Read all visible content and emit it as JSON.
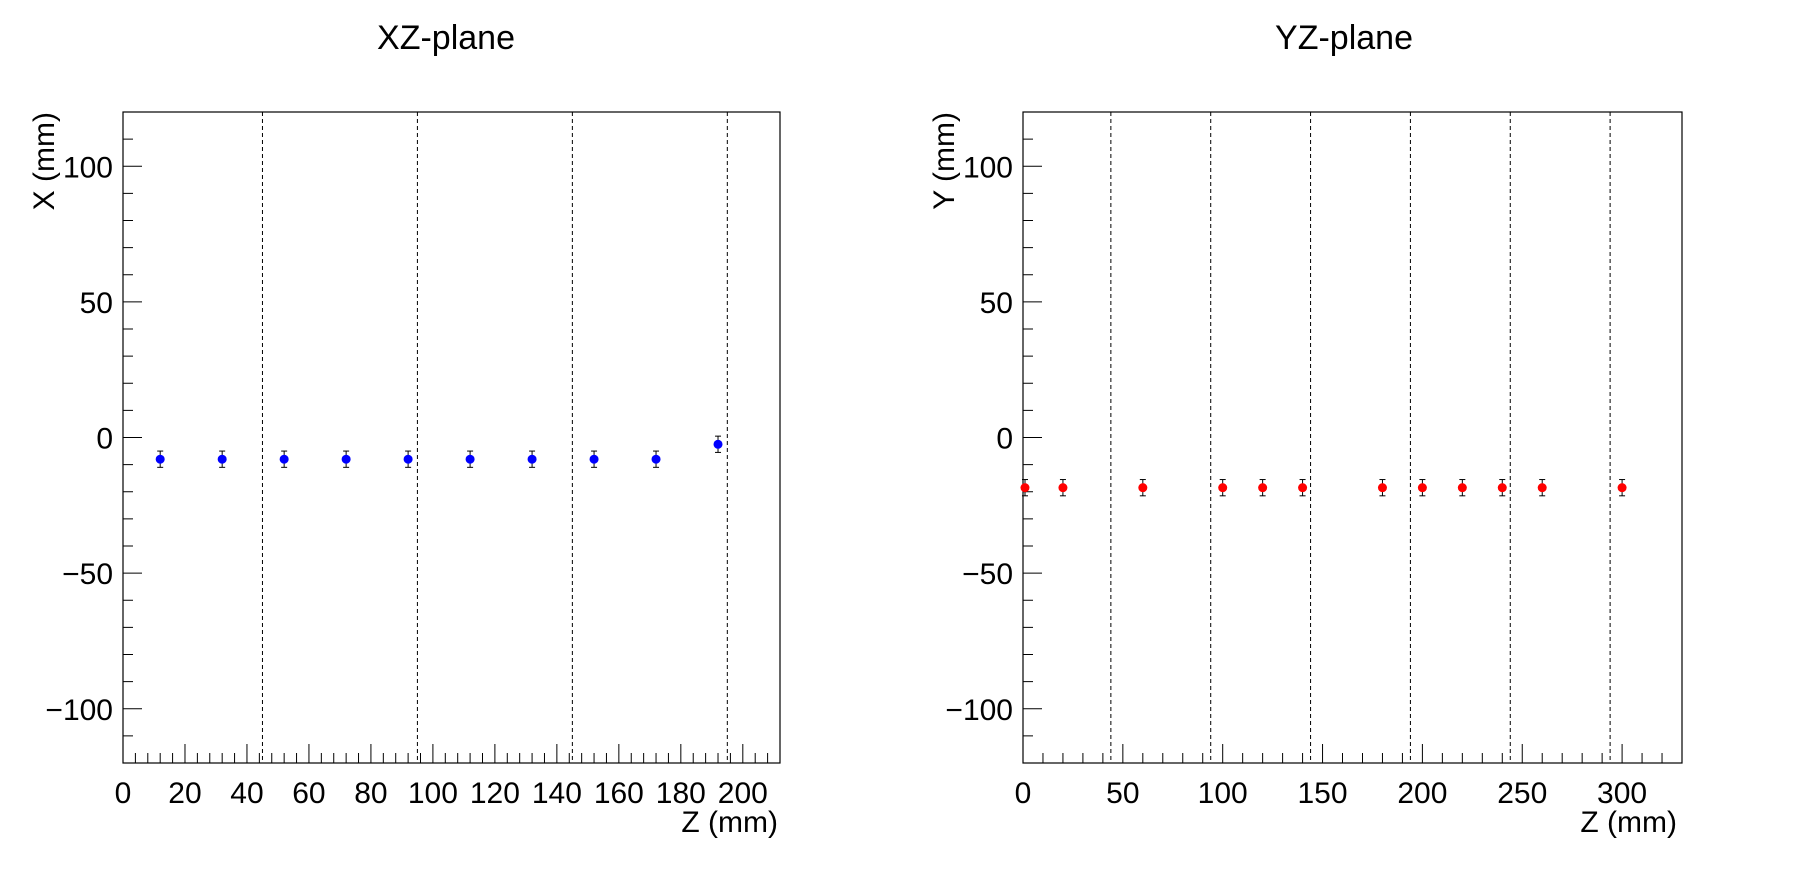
{
  "chart_data": [
    {
      "type": "scatter",
      "title": "XZ-plane",
      "xlabel": "Z (mm)",
      "ylabel": "X (mm)",
      "xlim": [
        0,
        212
      ],
      "ylim": [
        -120,
        120
      ],
      "x_ticks": [
        0,
        20,
        40,
        60,
        80,
        100,
        120,
        140,
        160,
        180,
        200
      ],
      "x_tick_labels": [
        "0",
        "20",
        "40",
        "60",
        "80",
        "100",
        "120",
        "140",
        "160",
        "180",
        "200"
      ],
      "y_ticks": [
        -100,
        -50,
        0,
        50,
        100
      ],
      "y_tick_labels": [
        "−100",
        "−50",
        "0",
        "50",
        "100"
      ],
      "grid": false,
      "dashed_lines_x": [
        45,
        95,
        145,
        195
      ],
      "marker_color": "#0000ff",
      "series": [
        {
          "x": [
            12,
            32,
            52,
            72,
            92,
            112,
            132,
            152,
            172,
            192
          ],
          "y": [
            -8,
            -8,
            -8,
            -8,
            -8,
            -8,
            -8,
            -8,
            -8,
            -2.5
          ],
          "y_err": [
            3,
            3,
            3,
            3,
            3,
            3,
            3,
            3,
            3,
            3
          ]
        }
      ]
    },
    {
      "type": "scatter",
      "title": "YZ-plane",
      "xlabel": "Z (mm)",
      "ylabel": "Y (mm)",
      "xlim": [
        0,
        330
      ],
      "ylim": [
        -120,
        120
      ],
      "x_ticks": [
        0,
        50,
        100,
        150,
        200,
        250,
        300
      ],
      "x_tick_labels": [
        "0",
        "50",
        "100",
        "150",
        "200",
        "250",
        "300"
      ],
      "y_ticks": [
        -100,
        -50,
        0,
        50,
        100
      ],
      "y_tick_labels": [
        "−100",
        "−50",
        "0",
        "50",
        "100"
      ],
      "grid": false,
      "dashed_lines_x": [
        44,
        94,
        144,
        194,
        244,
        294
      ],
      "marker_color": "#ff0000",
      "series": [
        {
          "x": [
            1,
            20,
            60,
            100,
            120,
            140,
            180,
            200,
            220,
            240,
            260,
            300
          ],
          "y": [
            -18.5,
            -18.5,
            -18.5,
            -18.5,
            -18.5,
            -18.5,
            -18.5,
            -18.5,
            -18.5,
            -18.5,
            -18.5,
            -18.5
          ],
          "y_err": [
            3,
            3,
            3,
            3,
            3,
            3,
            3,
            3,
            3,
            3,
            3,
            3
          ]
        }
      ]
    }
  ]
}
